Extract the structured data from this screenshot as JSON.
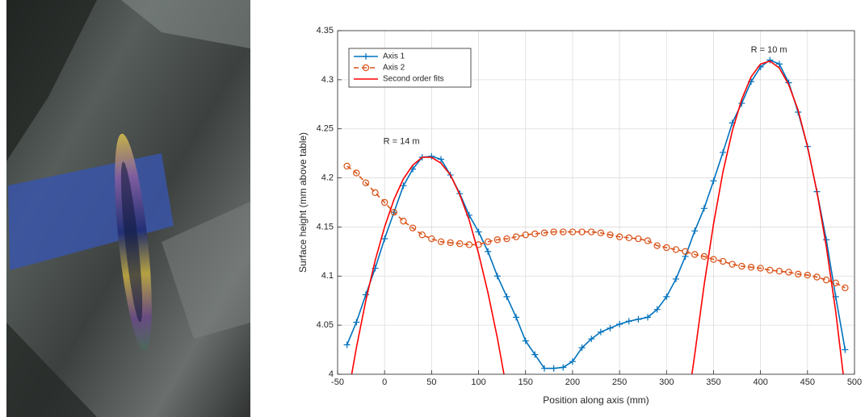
{
  "chart_data": {
    "type": "line",
    "xlabel": "Position along axis (mm)",
    "ylabel": "Surface height (mm above table)",
    "xlim": [
      -50,
      500
    ],
    "xticks": [
      -50,
      0,
      50,
      100,
      150,
      200,
      250,
      300,
      350,
      400,
      450,
      500
    ],
    "ylim": [
      4,
      4.35
    ],
    "yticks": [
      4,
      4.05,
      4.1,
      4.15,
      4.2,
      4.25,
      4.3,
      4.35
    ],
    "grid": true,
    "legend": "upper left",
    "series": [
      {
        "name": "Axis 1",
        "color": "#0072BD",
        "marker": "+",
        "line_style": "solid",
        "x": [
          -40,
          -30,
          -20,
          -10,
          0,
          10,
          20,
          30,
          40,
          50,
          60,
          70,
          80,
          90,
          100,
          110,
          120,
          130,
          140,
          150,
          160,
          170,
          180,
          190,
          200,
          210,
          220,
          230,
          240,
          250,
          260,
          270,
          280,
          290,
          300,
          310,
          320,
          330,
          340,
          350,
          360,
          370,
          380,
          390,
          400,
          410,
          420,
          430,
          440,
          450,
          460,
          470,
          480,
          490
        ],
        "values": [
          4.03,
          4.053,
          4.081,
          4.108,
          4.138,
          4.165,
          4.192,
          4.209,
          4.221,
          4.222,
          4.219,
          4.203,
          4.184,
          4.162,
          4.145,
          4.125,
          4.1,
          4.079,
          4.058,
          4.034,
          4.02,
          4.006,
          4.006,
          4.007,
          4.013,
          4.027,
          4.036,
          4.043,
          4.047,
          4.051,
          4.054,
          4.056,
          4.058,
          4.066,
          4.079,
          4.097,
          4.12,
          4.146,
          4.169,
          4.197,
          4.226,
          4.256,
          4.276,
          4.298,
          4.313,
          4.32,
          4.316,
          4.297,
          4.267,
          4.232,
          4.186,
          4.137,
          4.079,
          4.025
        ]
      },
      {
        "name": "Axis 2",
        "color": "#D95319",
        "marker": "o",
        "line_style": "dashed",
        "x": [
          -40,
          -30,
          -20,
          -10,
          0,
          10,
          20,
          30,
          40,
          50,
          60,
          70,
          80,
          90,
          100,
          110,
          120,
          130,
          140,
          150,
          160,
          170,
          180,
          190,
          200,
          210,
          220,
          230,
          240,
          250,
          260,
          270,
          280,
          290,
          300,
          310,
          320,
          330,
          340,
          350,
          360,
          370,
          380,
          390,
          400,
          410,
          420,
          430,
          440,
          450,
          460,
          470,
          480,
          490
        ],
        "values": [
          4.212,
          4.205,
          4.195,
          4.185,
          4.175,
          4.165,
          4.156,
          4.149,
          4.142,
          4.138,
          4.135,
          4.134,
          4.133,
          4.132,
          4.132,
          4.135,
          4.137,
          4.138,
          4.14,
          4.142,
          4.143,
          4.144,
          4.145,
          4.145,
          4.145,
          4.145,
          4.145,
          4.144,
          4.142,
          4.14,
          4.139,
          4.138,
          4.136,
          4.131,
          4.129,
          4.127,
          4.125,
          4.122,
          4.12,
          4.117,
          4.115,
          4.112,
          4.11,
          4.109,
          4.108,
          4.106,
          4.105,
          4.104,
          4.102,
          4.101,
          4.099,
          4.096,
          4.093,
          4.088
        ]
      },
      {
        "name": "Second order fits",
        "color": "#FF0000",
        "marker": "none",
        "line_style": "solid",
        "x": [
          -35,
          -30,
          -20,
          -10,
          0,
          10,
          20,
          30,
          40,
          50,
          60,
          70,
          80,
          90,
          100,
          110,
          120,
          127,
          null,
          327,
          330,
          340,
          350,
          360,
          370,
          380,
          390,
          400,
          410,
          420,
          430,
          440,
          450,
          460,
          470,
          480,
          488
        ],
        "values": [
          4.0,
          4.027,
          4.075,
          4.116,
          4.15,
          4.178,
          4.199,
          4.213,
          4.221,
          4.221,
          4.215,
          4.203,
          4.183,
          4.157,
          4.123,
          4.083,
          4.037,
          4.0,
          null,
          4.0,
          4.02,
          4.091,
          4.153,
          4.206,
          4.248,
          4.28,
          4.303,
          4.316,
          4.319,
          4.312,
          4.295,
          4.269,
          4.232,
          4.186,
          4.13,
          4.064,
          4.0
        ]
      }
    ],
    "annotations": [
      {
        "text": "R = 14 m",
        "x": 18,
        "y": 4.237
      },
      {
        "text": "R = 10 m",
        "x": 409,
        "y": 4.33
      }
    ]
  }
}
